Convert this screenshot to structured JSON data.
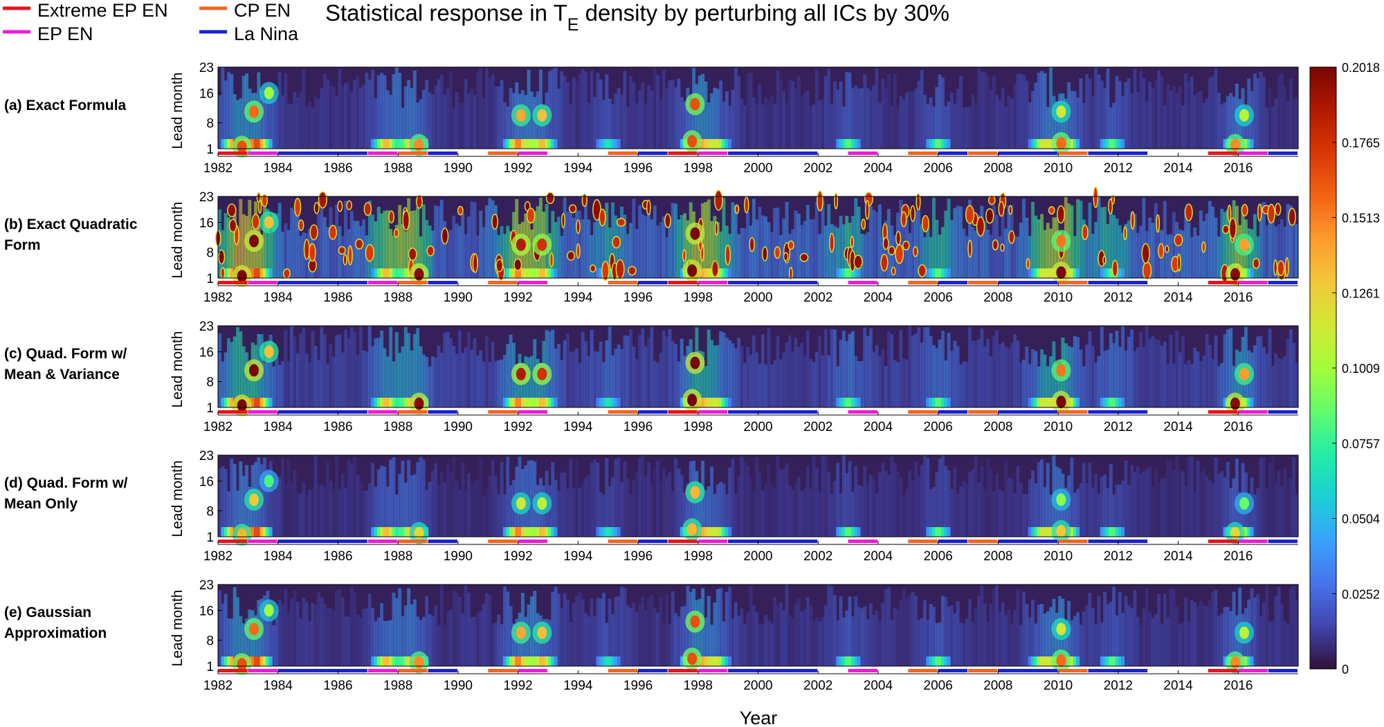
{
  "title": {
    "prefix": "Statistical response in T",
    "subscript": "E",
    "suffix": " density by perturbing all ICs by 30%"
  },
  "legend": {
    "entries": [
      {
        "label": "Extreme EP EN",
        "color": "#e8141c"
      },
      {
        "label": "CP EN",
        "color": "#f26522"
      },
      {
        "label": "EP EN",
        "color": "#ee1bd6"
      },
      {
        "label": "La Nina",
        "color": "#1b22cf"
      }
    ]
  },
  "xlabel": "Year",
  "ylabel": "Lead month",
  "colorbar": {
    "ticks": [
      "0.2018",
      "0.1765",
      "0.1513",
      "0.1261",
      "0.1009",
      "0.0757",
      "0.0504",
      "0.0252",
      "0"
    ],
    "stops": [
      "#30123b",
      "#4145ab",
      "#4675ed",
      "#39a2fc",
      "#1bcfd4",
      "#24eca6",
      "#61fc6c",
      "#a4fc3b",
      "#d1e834",
      "#f3c63a",
      "#fe9b2d",
      "#f36315",
      "#d93806",
      "#b11901",
      "#7a0403"
    ]
  },
  "chart_data": {
    "type": "heatmap",
    "title": "Statistical response in T_E density by perturbing all ICs by 30%",
    "xlabel": "Year",
    "ylabel": "Lead month",
    "x_range": [
      1982,
      2018
    ],
    "x_ticks": [
      "1982",
      "1984",
      "1986",
      "1988",
      "1990",
      "1992",
      "1994",
      "1996",
      "1998",
      "2000",
      "2002",
      "2004",
      "2006",
      "2008",
      "2010",
      "2012",
      "2014",
      "2016"
    ],
    "y_range": [
      1,
      23
    ],
    "y_ticks": [
      "1",
      "8",
      "16",
      "23"
    ],
    "color_range": [
      0,
      0.2018
    ],
    "panels": [
      {
        "label": "(a) Exact Formula",
        "lines": [
          "(a) Exact Formula"
        ],
        "intensity": 0.55
      },
      {
        "label": "(b) Exact Quadratic Form",
        "lines": [
          "(b) Exact Quadratic",
          "Form"
        ],
        "intensity": 1.35
      },
      {
        "label": "(c) Quad. Form w/ Mean & Variance",
        "lines": [
          "(c) Quad. Form w/",
          "Mean & Variance"
        ],
        "intensity": 0.75
      },
      {
        "label": "(d) Quad. Form w/ Mean Only",
        "lines": [
          "(d) Quad. Form w/",
          "Mean Only"
        ],
        "intensity": 0.45
      },
      {
        "label": "(e) Gaussian Approximation",
        "lines": [
          "(e) Gaussian",
          "Approximation"
        ],
        "intensity": 0.55
      }
    ],
    "events": [
      {
        "type": "Extreme EP EN",
        "start": 1982.0,
        "end": 1983.0
      },
      {
        "type": "EP EN",
        "start": 1983.0,
        "end": 1984.0
      },
      {
        "type": "La Nina",
        "start": 1984.0,
        "end": 1987.0
      },
      {
        "type": "EP EN",
        "start": 1987.0,
        "end": 1988.0
      },
      {
        "type": "CP EN",
        "start": 1988.0,
        "end": 1989.0
      },
      {
        "type": "La Nina",
        "start": 1989.0,
        "end": 1990.0
      },
      {
        "type": "CP EN",
        "start": 1991.0,
        "end": 1992.0
      },
      {
        "type": "EP EN",
        "start": 1992.0,
        "end": 1993.0
      },
      {
        "type": "CP EN",
        "start": 1995.0,
        "end": 1996.0
      },
      {
        "type": "La Nina",
        "start": 1996.0,
        "end": 1997.0
      },
      {
        "type": "Extreme EP EN",
        "start": 1997.0,
        "end": 1998.0
      },
      {
        "type": "EP EN",
        "start": 1998.0,
        "end": 1999.0
      },
      {
        "type": "La Nina",
        "start": 1999.0,
        "end": 2002.0
      },
      {
        "type": "EP EN",
        "start": 2003.0,
        "end": 2004.0
      },
      {
        "type": "CP EN",
        "start": 2005.0,
        "end": 2006.0
      },
      {
        "type": "La Nina",
        "start": 2006.0,
        "end": 2007.0
      },
      {
        "type": "CP EN",
        "start": 2007.0,
        "end": 2008.0
      },
      {
        "type": "La Nina",
        "start": 2008.0,
        "end": 2010.0
      },
      {
        "type": "CP EN",
        "start": 2010.0,
        "end": 2011.0
      },
      {
        "type": "La Nina",
        "start": 2011.0,
        "end": 2013.0
      },
      {
        "type": "Extreme EP EN",
        "start": 2015.0,
        "end": 2016.0
      },
      {
        "type": "EP EN",
        "start": 2016.0,
        "end": 2017.0
      },
      {
        "type": "La Nina",
        "start": 2017.0,
        "end": 2018.0
      }
    ],
    "hotspots": [
      {
        "year": 1982.8,
        "lead": 1.5,
        "value": 0.2
      },
      {
        "year": 1983.2,
        "lead": 11,
        "value": 0.19
      },
      {
        "year": 1983.7,
        "lead": 16,
        "value": 0.12
      },
      {
        "year": 1988.7,
        "lead": 2,
        "value": 0.18
      },
      {
        "year": 1992.1,
        "lead": 10,
        "value": 0.17
      },
      {
        "year": 1992.8,
        "lead": 10,
        "value": 0.16
      },
      {
        "year": 1997.8,
        "lead": 3,
        "value": 0.2
      },
      {
        "year": 1997.9,
        "lead": 13,
        "value": 0.2
      },
      {
        "year": 2010.1,
        "lead": 2.5,
        "value": 0.19
      },
      {
        "year": 2010.1,
        "lead": 11,
        "value": 0.14
      },
      {
        "year": 2015.9,
        "lead": 2,
        "value": 0.18
      },
      {
        "year": 2016.2,
        "lead": 10,
        "value": 0.13
      }
    ]
  }
}
